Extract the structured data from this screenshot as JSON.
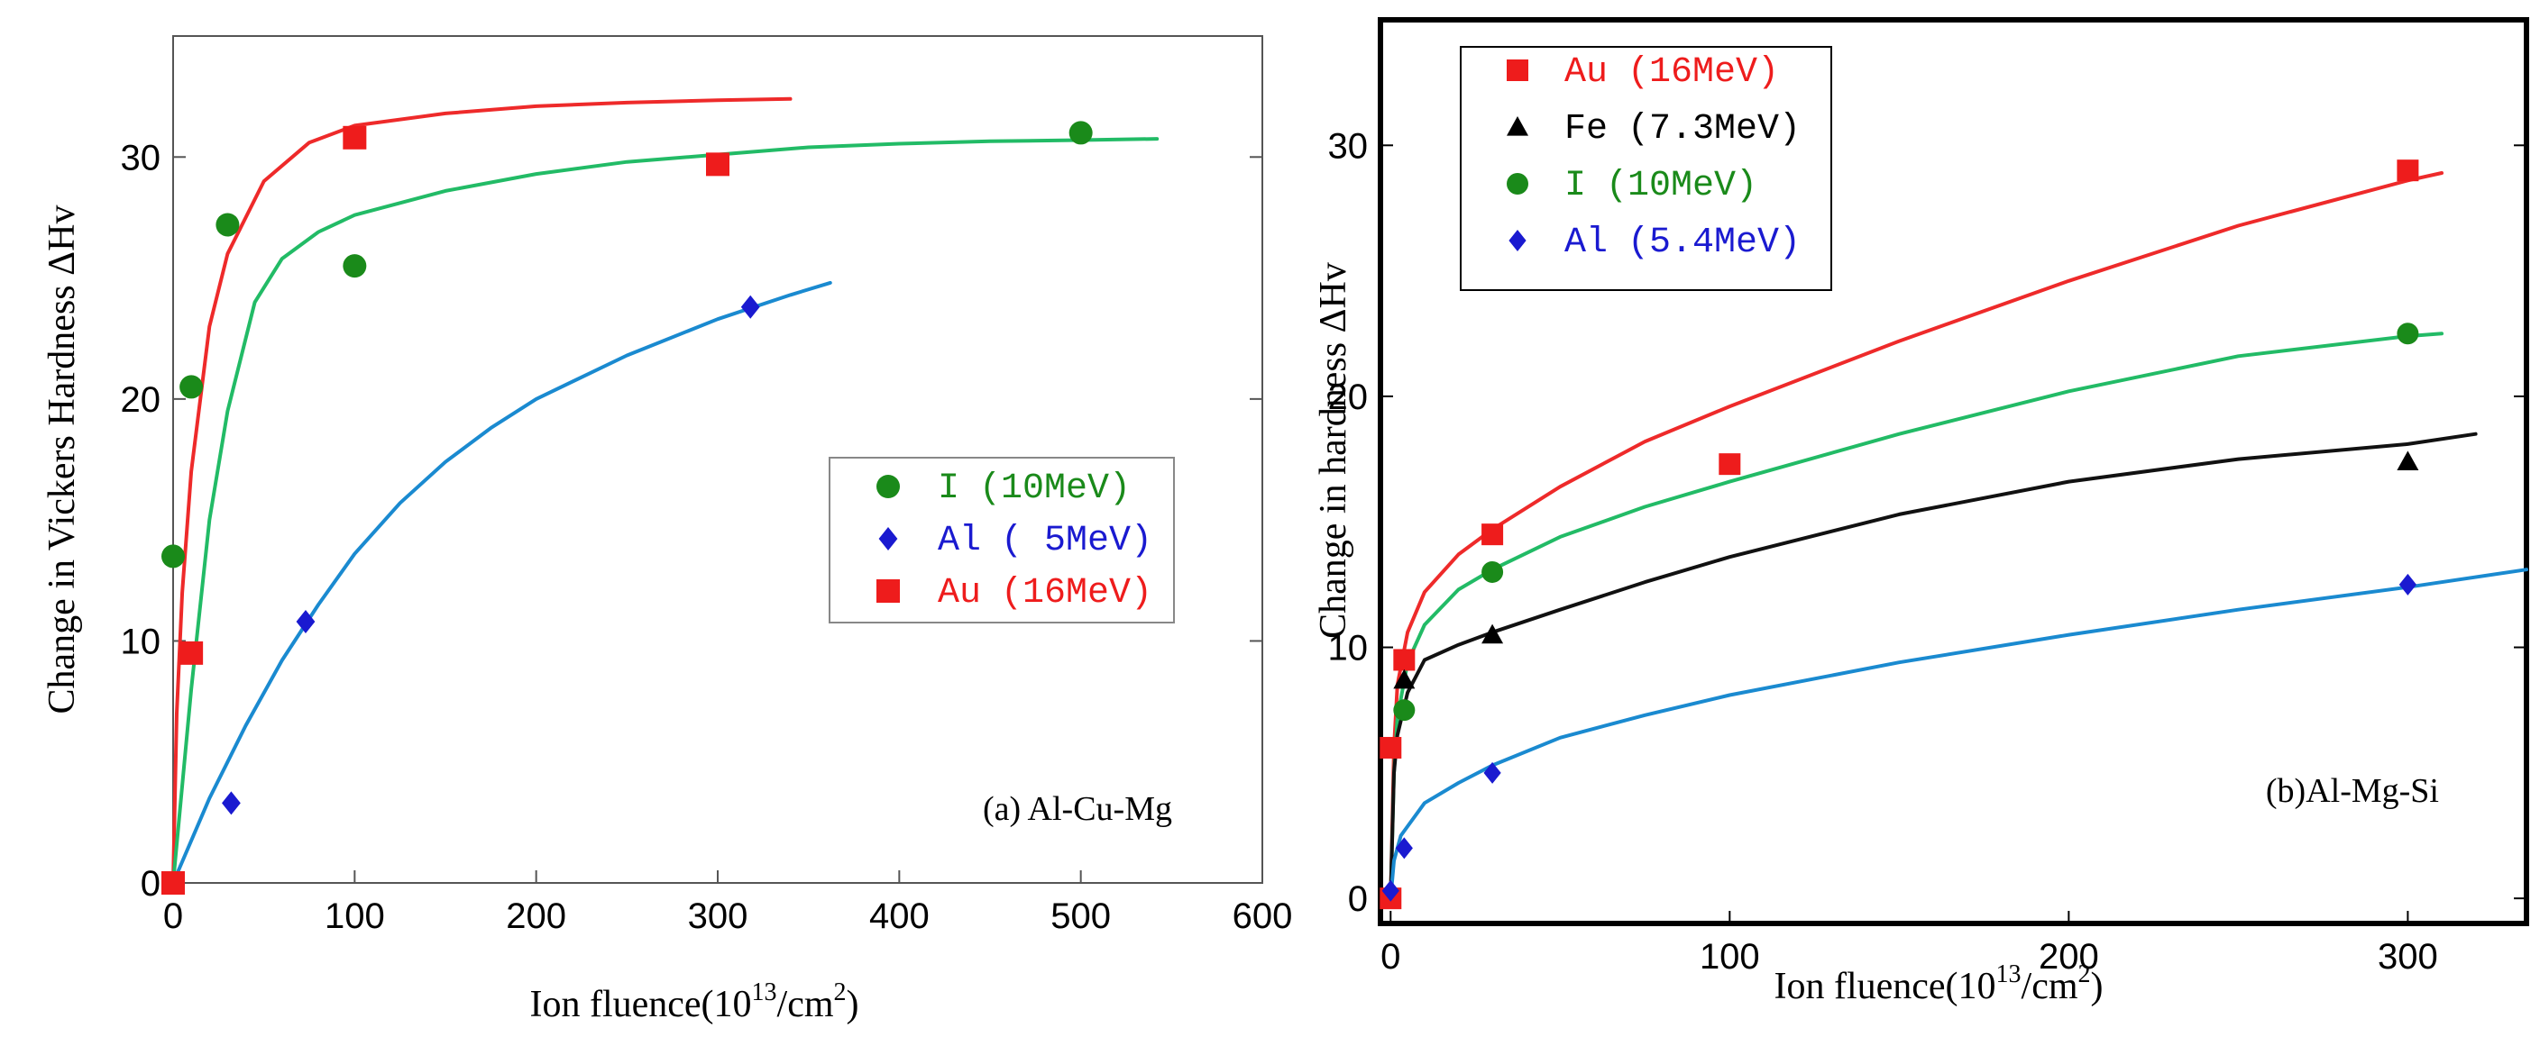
{
  "chart_data": [
    {
      "type": "scatter",
      "panel_label": "(a) Al-Cu-Mg",
      "xlabel": {
        "prefix": "Ion fluence(10",
        "sup": "13",
        "suffix": "/cm",
        "sup2": "2",
        "end": ")"
      },
      "ylabel": "Change in Vickers Hardness ΔHv",
      "xlim": [
        0,
        600
      ],
      "ylim": [
        0,
        35
      ],
      "xticks": [
        0,
        100,
        200,
        300,
        400,
        500,
        600
      ],
      "yticks": [
        0,
        10,
        20,
        30
      ],
      "legend_position": "center-right",
      "series": [
        {
          "name": "I",
          "energy": "(10MeV)",
          "color": "#1a8a1a",
          "text_color": "#1a8a1a",
          "marker": "circle",
          "points": [
            [
              0,
              13.5
            ],
            [
              10,
              20.5
            ],
            [
              30,
              27.2
            ],
            [
              100,
              25.5
            ],
            [
              500,
              31
            ]
          ]
        },
        {
          "name": "Al",
          "energy": "( 5MeV)",
          "color": "#1a1ad0",
          "text_color": "#1a1ad0",
          "marker": "diamond",
          "points": [
            [
              32,
              3.3
            ],
            [
              73,
              10.8
            ],
            [
              318,
              23.8
            ]
          ]
        },
        {
          "name": "Au",
          "energy": "(16MeV)",
          "color": "#ee1c1c",
          "text_color": "#ee1c1c",
          "marker": "square",
          "points": [
            [
              0,
              0
            ],
            [
              10,
              9.5
            ],
            [
              100,
              30.8
            ],
            [
              300,
              29.7
            ]
          ]
        }
      ],
      "fits": [
        {
          "series": "Au",
          "color": "#ee2a2a",
          "points": [
            [
              0,
              0
            ],
            [
              2,
              7
            ],
            [
              5,
              12
            ],
            [
              10,
              17
            ],
            [
              20,
              23
            ],
            [
              30,
              26
            ],
            [
              50,
              29
            ],
            [
              75,
              30.6
            ],
            [
              100,
              31.3
            ],
            [
              150,
              31.8
            ],
            [
              200,
              32.1
            ],
            [
              250,
              32.25
            ],
            [
              300,
              32.35
            ],
            [
              340,
              32.4
            ]
          ]
        },
        {
          "series": "I",
          "color": "#22bb66",
          "points": [
            [
              0,
              0
            ],
            [
              10,
              8
            ],
            [
              20,
              15
            ],
            [
              30,
              19.5
            ],
            [
              45,
              24
            ],
            [
              60,
              25.8
            ],
            [
              80,
              26.9
            ],
            [
              100,
              27.6
            ],
            [
              150,
              28.6
            ],
            [
              200,
              29.3
            ],
            [
              250,
              29.8
            ],
            [
              300,
              30.1
            ],
            [
              350,
              30.4
            ],
            [
              400,
              30.55
            ],
            [
              450,
              30.65
            ],
            [
              500,
              30.7
            ],
            [
              542,
              30.75
            ]
          ]
        },
        {
          "series": "Al",
          "color": "#1a8ad0",
          "points": [
            [
              0,
              0
            ],
            [
              20,
              3.5
            ],
            [
              40,
              6.5
            ],
            [
              60,
              9.2
            ],
            [
              80,
              11.5
            ],
            [
              100,
              13.6
            ],
            [
              125,
              15.7
            ],
            [
              150,
              17.4
            ],
            [
              175,
              18.8
            ],
            [
              200,
              20
            ],
            [
              250,
              21.8
            ],
            [
              300,
              23.3
            ],
            [
              340,
              24.3
            ],
            [
              362,
              24.8
            ]
          ]
        }
      ]
    },
    {
      "type": "scatter",
      "panel_label": "(b)Al-Mg-Si",
      "xlabel": {
        "prefix": "Ion fluence(10",
        "sup": "13",
        "suffix": "/cm",
        "sup2": "2",
        "end": ")"
      },
      "ylabel": "Change in hardness ΔHv",
      "xlim": [
        -3,
        335
      ],
      "ylim": [
        -1,
        35
      ],
      "xticks": [
        0,
        100,
        200,
        300
      ],
      "yticks": [
        0,
        10,
        20,
        30
      ],
      "legend_position": "top-left",
      "series": [
        {
          "name": "Au",
          "energy": "(16MeV)",
          "color": "#ee1c1c",
          "text_color": "#ee1c1c",
          "marker": "square",
          "points": [
            [
              0,
              0
            ],
            [
              0,
              6
            ],
            [
              4,
              9.5
            ],
            [
              30,
              14.5
            ],
            [
              100,
              17.3
            ],
            [
              300,
              29
            ]
          ]
        },
        {
          "name": "Fe",
          "energy": "(7.3MeV)",
          "color": "#000000",
          "text_color": "#000000",
          "marker": "triangle",
          "points": [
            [
              4,
              8.7
            ],
            [
              30,
              10.5
            ],
            [
              300,
              17.4
            ]
          ]
        },
        {
          "name": "I",
          "energy": "(10MeV)",
          "color": "#1a8a1a",
          "text_color": "#1a8a1a",
          "marker": "circle",
          "points": [
            [
              4,
              7.5
            ],
            [
              30,
              13
            ],
            [
              300,
              22.5
            ]
          ]
        },
        {
          "name": "Al",
          "energy": "(5.4MeV)",
          "color": "#1a1ad0",
          "text_color": "#1a1ad0",
          "marker": "diamond",
          "points": [
            [
              0,
              0.3
            ],
            [
              4,
              2
            ],
            [
              30,
              5
            ],
            [
              300,
              12.5
            ]
          ]
        }
      ],
      "fits": [
        {
          "series": "Au",
          "color": "#ee2a2a",
          "points": [
            [
              0,
              0
            ],
            [
              1,
              6
            ],
            [
              2,
              8.5
            ],
            [
              5,
              10.6
            ],
            [
              10,
              12.2
            ],
            [
              20,
              13.7
            ],
            [
              30,
              14.7
            ],
            [
              50,
              16.4
            ],
            [
              75,
              18.2
            ],
            [
              100,
              19.6
            ],
            [
              150,
              22.2
            ],
            [
              200,
              24.6
            ],
            [
              250,
              26.8
            ],
            [
              300,
              28.6
            ],
            [
              310,
              28.9
            ]
          ]
        },
        {
          "series": "I",
          "color": "#22bb66",
          "points": [
            [
              0,
              0
            ],
            [
              1,
              5
            ],
            [
              2,
              7.2
            ],
            [
              5,
              9.4
            ],
            [
              10,
              10.9
            ],
            [
              20,
              12.3
            ],
            [
              30,
              13.1
            ],
            [
              50,
              14.4
            ],
            [
              75,
              15.6
            ],
            [
              100,
              16.6
            ],
            [
              150,
              18.5
            ],
            [
              200,
              20.2
            ],
            [
              250,
              21.6
            ],
            [
              300,
              22.4
            ],
            [
              310,
              22.5
            ]
          ]
        },
        {
          "series": "Fe",
          "color": "#111111",
          "points": [
            [
              0,
              0
            ],
            [
              1,
              5
            ],
            [
              2,
              6.5
            ],
            [
              5,
              8.2
            ],
            [
              10,
              9.5
            ],
            [
              20,
              10.1
            ],
            [
              30,
              10.6
            ],
            [
              50,
              11.5
            ],
            [
              75,
              12.6
            ],
            [
              100,
              13.6
            ],
            [
              150,
              15.3
            ],
            [
              200,
              16.6
            ],
            [
              250,
              17.5
            ],
            [
              300,
              18.1
            ],
            [
              320,
              18.5
            ]
          ]
        },
        {
          "series": "Al",
          "color": "#1a8ad0",
          "points": [
            [
              0,
              0
            ],
            [
              1,
              1.5
            ],
            [
              3,
              2.5
            ],
            [
              10,
              3.8
            ],
            [
              20,
              4.6
            ],
            [
              30,
              5.3
            ],
            [
              50,
              6.4
            ],
            [
              75,
              7.3
            ],
            [
              100,
              8.1
            ],
            [
              150,
              9.4
            ],
            [
              200,
              10.5
            ],
            [
              250,
              11.5
            ],
            [
              300,
              12.4
            ],
            [
              335,
              13.1
            ]
          ]
        }
      ]
    }
  ]
}
